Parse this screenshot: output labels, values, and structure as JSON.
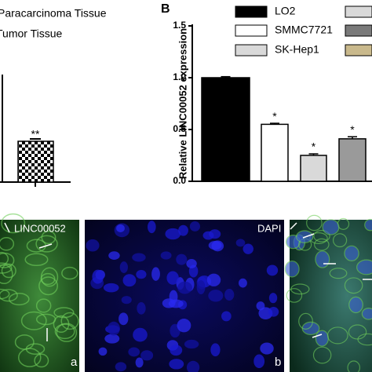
{
  "panel_a": {
    "legend": [
      "Paracarcinoma Tissue",
      "Tumor Tissue"
    ],
    "annotation": "**"
  },
  "chart_data": {
    "type": "bar",
    "panel_label": "B",
    "ylabel": "Relative LINC00052 expression",
    "ylim": [
      0,
      1.5
    ],
    "yticks": [
      {
        "value": 0,
        "label": "0.0"
      },
      {
        "value": 0.5,
        "label": "0.5"
      },
      {
        "value": 1,
        "label": "1.0"
      },
      {
        "value": 1.5,
        "label": "1.5"
      }
    ],
    "series": [
      {
        "name": "LO2",
        "color": "#000000",
        "values": [
          1.0
        ],
        "errors": [
          0.01
        ]
      },
      {
        "name": "SMMC7721",
        "color": "#ffffff",
        "values": [
          0.55
        ],
        "errors": [
          0.01
        ],
        "annotation": "*"
      },
      {
        "name": "SK-Hep1",
        "color": "#d9d9d9",
        "values": [
          0.25
        ],
        "errors": [
          0.015
        ],
        "annotation": "*"
      },
      {
        "name": null,
        "color": "#9a9a9a",
        "values": [
          0.41
        ],
        "errors": [
          0.02
        ],
        "annotation": "*"
      }
    ]
  },
  "images": {
    "labels": [
      "LINC00052",
      "DAPI"
    ],
    "letters": [
      "a",
      "b"
    ]
  }
}
